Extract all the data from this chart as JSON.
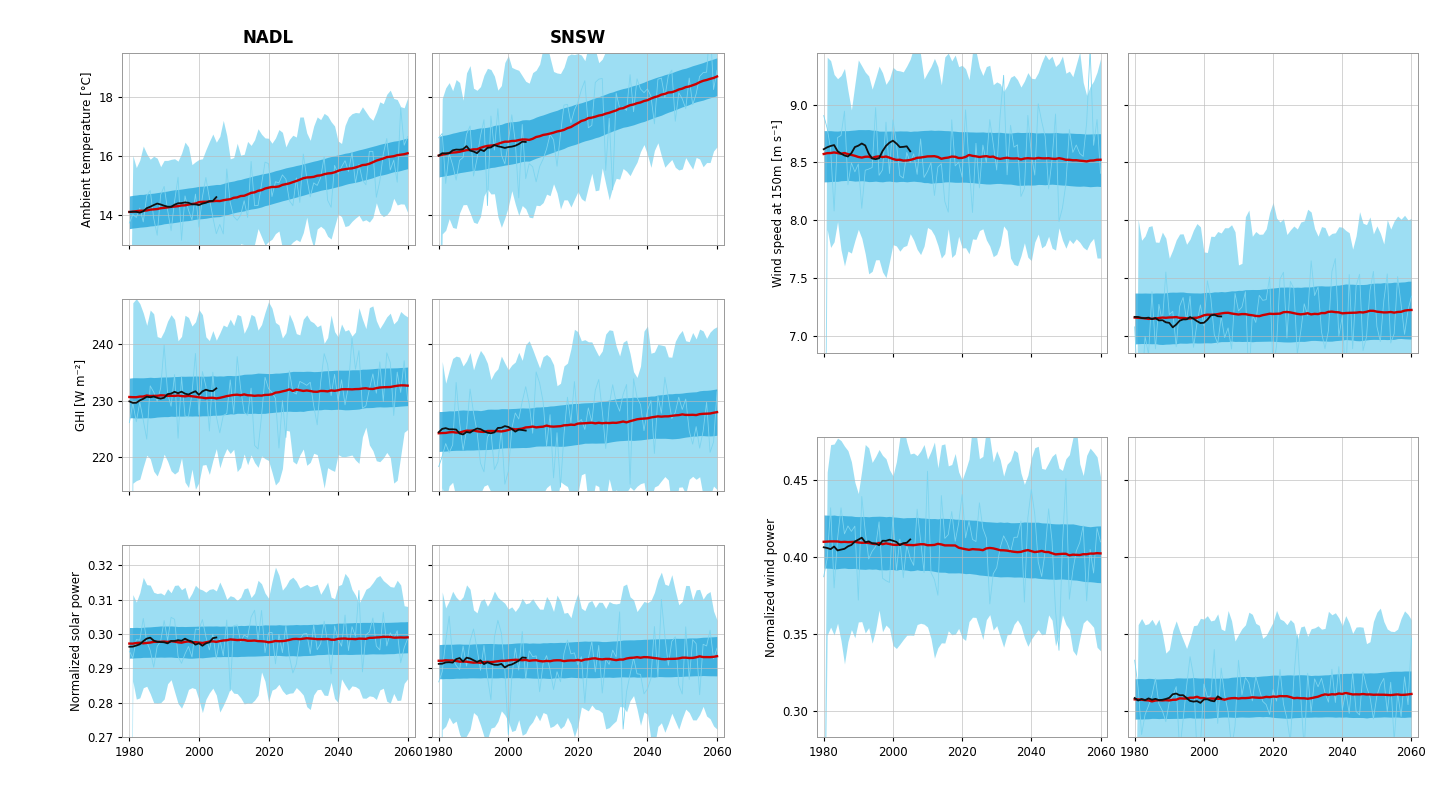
{
  "left_col_title": "NADL",
  "right_col_title": "SNSW",
  "x_ticks": [
    1980,
    2000,
    2020,
    2040,
    2060
  ],
  "panels": {
    "temp_left": {
      "ylim": [
        13.0,
        19.5
      ],
      "yticks": [
        14,
        16,
        18
      ],
      "hist_mean": 14.1,
      "proj_mean": 16.1,
      "hist_spread": 0.55,
      "proj_spread": 0.45,
      "annual_amp": 0.7,
      "trend_noise": 0.18
    },
    "temp_right": {
      "ylim": [
        13.0,
        19.5
      ],
      "yticks": [
        14,
        16,
        18
      ],
      "hist_mean": 16.0,
      "proj_mean": 18.7,
      "hist_spread": 0.7,
      "proj_spread": 0.55,
      "annual_amp": 0.9,
      "trend_noise": 0.22
    },
    "ghi_left": {
      "ylim": [
        214,
        248
      ],
      "yticks": [
        220,
        230,
        240
      ],
      "hist_mean": 230.5,
      "proj_mean": 232.5,
      "hist_spread": 3.5,
      "proj_spread": 3.0,
      "annual_amp": 5.0,
      "trend_noise": 1.5
    },
    "ghi_right": {
      "ylim": [
        214,
        248
      ],
      "yticks": [
        220,
        230,
        240
      ],
      "hist_mean": 224.5,
      "proj_mean": 228.0,
      "hist_spread": 3.5,
      "proj_spread": 3.5,
      "annual_amp": 5.0,
      "trend_noise": 1.5
    },
    "sol_left": {
      "ylim": [
        0.27,
        0.326
      ],
      "yticks": [
        0.27,
        0.28,
        0.29,
        0.3,
        0.31,
        0.32
      ],
      "hist_mean": 0.2975,
      "proj_mean": 0.299,
      "hist_spread": 0.0045,
      "proj_spread": 0.004,
      "annual_amp": 0.006,
      "trend_noise": 0.002
    },
    "sol_right": {
      "ylim": [
        0.27,
        0.326
      ],
      "yticks": [
        0.27,
        0.28,
        0.29,
        0.3,
        0.31,
        0.32
      ],
      "hist_mean": 0.292,
      "proj_mean": 0.2935,
      "hist_spread": 0.005,
      "proj_spread": 0.005,
      "annual_amp": 0.007,
      "trend_noise": 0.002
    },
    "wind_left1": {
      "ylim": [
        6.85,
        9.45
      ],
      "yticks": [
        7.0,
        7.5,
        8.0,
        8.5,
        9.0
      ],
      "hist_mean": 8.56,
      "proj_mean": 8.52,
      "hist_spread": 0.22,
      "proj_spread": 0.2,
      "annual_amp": 0.3,
      "trend_noise": 0.1
    },
    "wind_right1": {
      "ylim": [
        6.85,
        9.45
      ],
      "yticks": [
        7.0,
        7.5,
        8.0,
        8.5,
        9.0
      ],
      "hist_mean": 7.15,
      "proj_mean": 7.22,
      "hist_spread": 0.22,
      "proj_spread": 0.22,
      "annual_amp": 0.28,
      "trend_noise": 0.08
    },
    "wind_left2": {
      "ylim": [
        0.283,
        0.478
      ],
      "yticks": [
        0.3,
        0.35,
        0.4,
        0.45
      ],
      "hist_mean": 0.41,
      "proj_mean": 0.402,
      "hist_spread": 0.017,
      "proj_spread": 0.016,
      "annual_amp": 0.022,
      "trend_noise": 0.007
    },
    "wind_right2": {
      "ylim": [
        0.283,
        0.478
      ],
      "yticks": [
        0.3,
        0.35,
        0.4,
        0.45
      ],
      "hist_mean": 0.308,
      "proj_mean": 0.311,
      "hist_spread": 0.013,
      "proj_spread": 0.013,
      "annual_amp": 0.018,
      "trend_noise": 0.005
    }
  },
  "ylabels": {
    "temp": "Ambient temperature [°C]",
    "ghi": "GHI [W m⁻²]",
    "sol": "Normalized solar power",
    "wind1": "Wind speed at 150m [m s⁻¹]",
    "wind2": "Normalized wind power"
  },
  "color_light": "#7DD4EF",
  "color_dark": "#29A8DC",
  "color_red": "#CC0000",
  "color_black": "#111111",
  "hist_end": 2005,
  "x_start": 1980,
  "x_end": 2060
}
